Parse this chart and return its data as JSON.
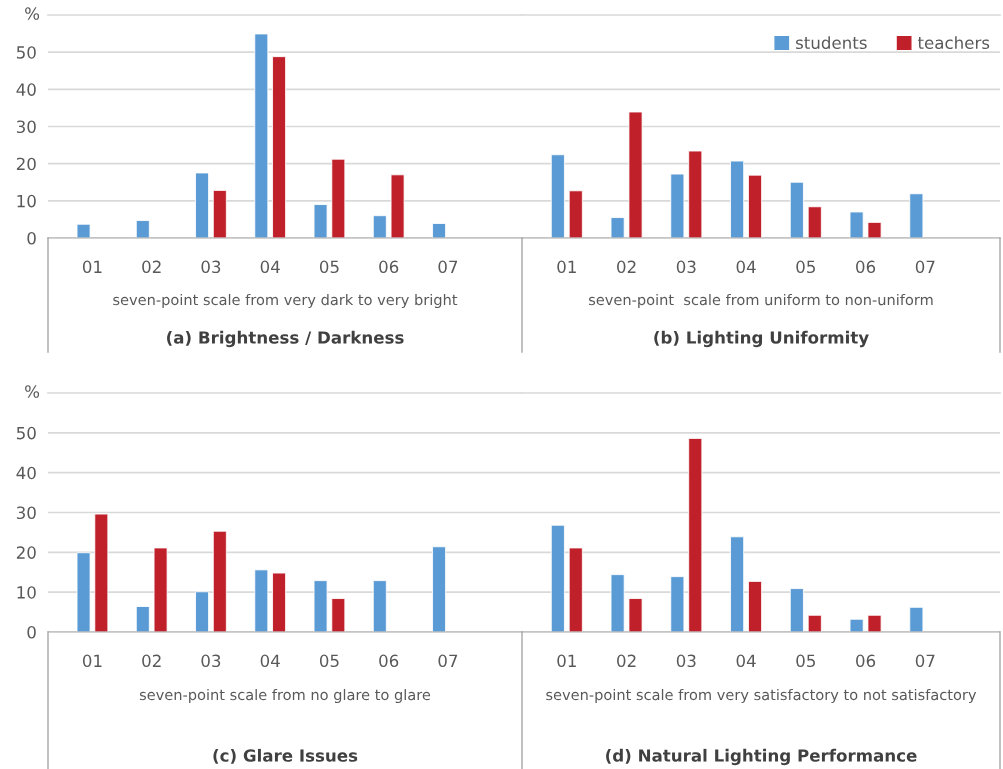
{
  "chart_data": [
    {
      "type": "bar",
      "title": "(a) Brightness / Darkness",
      "xlabel": "seven-point scale from very dark to very bright",
      "ylabel": "%",
      "categories": [
        "01",
        "02",
        "03",
        "04",
        "05",
        "06",
        "07"
      ],
      "series": [
        {
          "color": "#5b9bd5",
          "values": [
            3.7,
            4.7,
            17.5,
            54.9,
            9.0,
            6.0,
            3.9
          ]
        },
        {
          "color": "#c0202a",
          "values": [
            null,
            null,
            12.8,
            48.8,
            21.2,
            17.0,
            null
          ]
        }
      ],
      "ylim": [
        0,
        60
      ],
      "yticks": [
        0,
        10,
        20,
        30,
        40,
        50
      ],
      "grid": "y",
      "legend": false
    },
    {
      "type": "bar",
      "title": "(b) Lighting Uniformity",
      "xlabel": "seven-point  scale from uniform to non-uniform",
      "categories": [
        "01",
        "02",
        "03",
        "04",
        "05",
        "06",
        "07"
      ],
      "series": [
        {
          "name": "students",
          "color": "#5b9bd5",
          "values": [
            22.4,
            5.5,
            17.2,
            20.7,
            15.0,
            7.0,
            11.9
          ]
        },
        {
          "name": "teachers",
          "color": "#c0202a",
          "values": [
            12.7,
            33.9,
            23.4,
            16.9,
            8.4,
            4.2,
            null
          ]
        }
      ],
      "ylim": [
        0,
        60
      ],
      "yticks": [
        0,
        10,
        20,
        30,
        40,
        50
      ],
      "grid": "y",
      "legend": "top right",
      "tick_labels": "x"
    },
    {
      "type": "bar",
      "title": "(c) Glare Issues",
      "xlabel": "seven-point scale from no glare to glare",
      "ylabel": "%",
      "categories": [
        "01",
        "02",
        "03",
        "04",
        "05",
        "06",
        "07"
      ],
      "series": [
        {
          "color": "#5b9bd5",
          "values": [
            19.9,
            6.4,
            10.1,
            15.6,
            12.9,
            12.9,
            21.4
          ]
        },
        {
          "color": "#c0202a",
          "values": [
            29.6,
            21.1,
            25.3,
            14.8,
            8.4,
            null,
            null
          ]
        }
      ],
      "ylim": [
        0,
        60
      ],
      "yticks": [
        0,
        10,
        20,
        30,
        40,
        50
      ],
      "grid": "y",
      "legend": false
    },
    {
      "type": "bar",
      "title": "(d) Natural Lighting Performance",
      "xlabel": "seven-point scale from very satisfactory to not satisfactory",
      "categories": [
        "01",
        "02",
        "03",
        "04",
        "05",
        "06",
        "07"
      ],
      "series": [
        {
          "color": "#5b9bd5",
          "values": [
            26.8,
            14.4,
            13.9,
            23.9,
            10.9,
            3.2,
            6.2
          ]
        },
        {
          "color": "#c0202a",
          "values": [
            21.1,
            8.4,
            48.6,
            12.7,
            4.2,
            4.2,
            null
          ]
        }
      ],
      "ylim": [
        0,
        60
      ],
      "yticks": [
        0,
        10,
        20,
        30,
        40,
        50
      ],
      "grid": "y",
      "legend": false,
      "tick_labels": "x"
    }
  ]
}
